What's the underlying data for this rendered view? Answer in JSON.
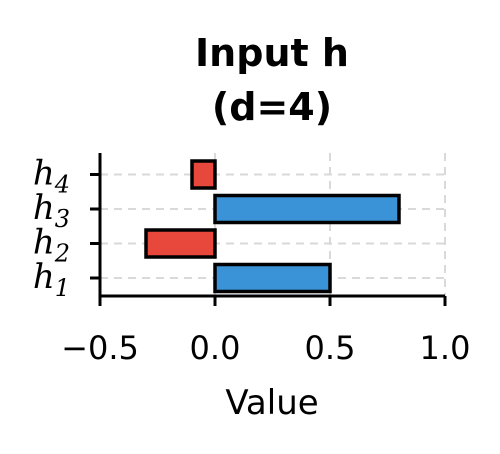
{
  "chart_data": {
    "type": "bar",
    "orientation": "horizontal",
    "title": [
      "Input h",
      "(d=4)"
    ],
    "xlabel": "Value",
    "ylabel": "",
    "categories": [
      {
        "base": "h",
        "sub": "1"
      },
      {
        "base": "h",
        "sub": "2"
      },
      {
        "base": "h",
        "sub": "3"
      },
      {
        "base": "h",
        "sub": "4"
      }
    ],
    "values": [
      0.5,
      -0.3,
      0.8,
      -0.1
    ],
    "xlim": [
      -0.5,
      1.0
    ],
    "xticks": [
      -0.5,
      0.0,
      0.5,
      1.0
    ],
    "xtick_labels": [
      "−0.5",
      "0.0",
      "0.5",
      "1.0"
    ],
    "grid": true,
    "colors": {
      "positive": "#3a93d6",
      "negative": "#e8483c",
      "edge": "#000000",
      "grid": "#d9d9d9"
    }
  }
}
